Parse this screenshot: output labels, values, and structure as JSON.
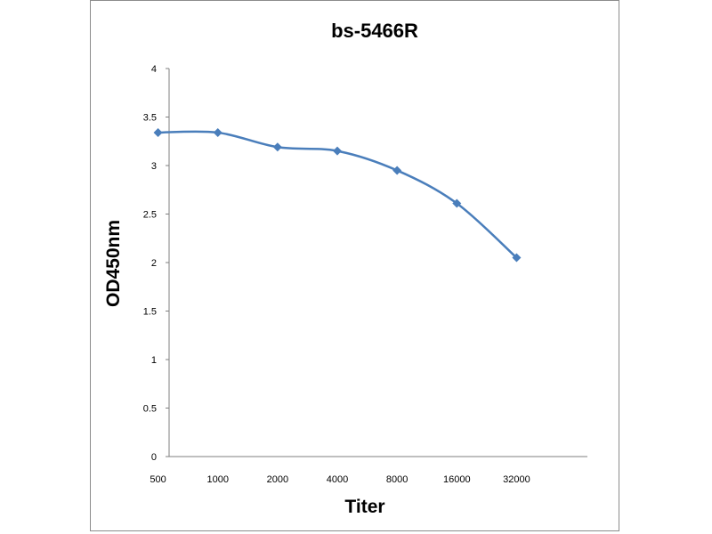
{
  "chart_data": {
    "type": "line",
    "title": "bs-5466R",
    "xlabel": "Titer",
    "ylabel": "OD450nm",
    "categories": [
      "500",
      "1000",
      "2000",
      "4000",
      "8000",
      "16000",
      "32000"
    ],
    "series": [
      {
        "values": [
          3.34,
          3.34,
          3.19,
          3.15,
          2.95,
          2.61,
          2.05
        ]
      }
    ],
    "ylim": [
      0,
      4
    ],
    "yticks": [
      "0",
      "0.5",
      "1",
      "1.5",
      "2",
      "2.5",
      "3",
      "3.5",
      "4"
    ],
    "grid": false,
    "legend": "none",
    "line_color": "#4a7ebb"
  }
}
